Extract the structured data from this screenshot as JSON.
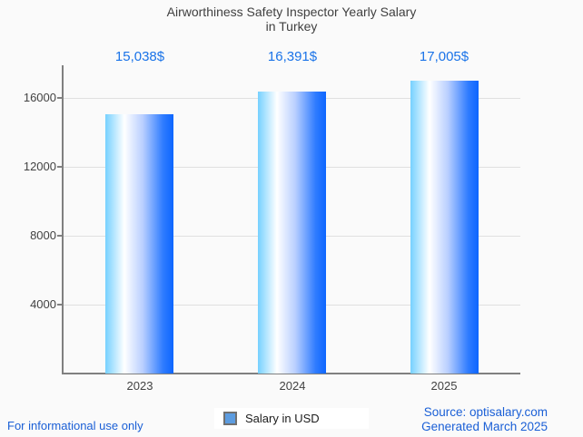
{
  "title": {
    "line1": "Airworthiness Safety Inspector Yearly Salary",
    "line2": "in Turkey"
  },
  "chart_data": {
    "type": "bar",
    "categories": [
      "2023",
      "2024",
      "2025"
    ],
    "values": [
      15038,
      16391,
      17005
    ],
    "value_labels": [
      "15,038$",
      "16,391$",
      "17,005$"
    ],
    "title": "Airworthiness Safety Inspector Yearly Salary in Turkey",
    "xlabel": "",
    "ylabel": "",
    "yticks": [
      4000,
      8000,
      12000,
      16000
    ],
    "ylim": [
      0,
      17900
    ],
    "grid": true,
    "legend": [
      "Salary in USD"
    ],
    "legend_position": "bottom",
    "bar_gradient": [
      "#76d1ff",
      "#ffffff",
      "#0d66ff"
    ]
  },
  "legend": {
    "label": "Salary in USD",
    "marker_fill": "#5c9ce0",
    "marker_border": "#707070"
  },
  "footer": {
    "left": "For informational use only",
    "source": "Source: optisalary.com",
    "generated": "Generated March 2025"
  },
  "colors": {
    "background": "#fafafa",
    "title": "#404040",
    "tick_label": "#424242",
    "axis": "#808080",
    "gridline": "#e0e0e0",
    "value_label": "#1a73e8",
    "link": "#1a5fd6"
  }
}
